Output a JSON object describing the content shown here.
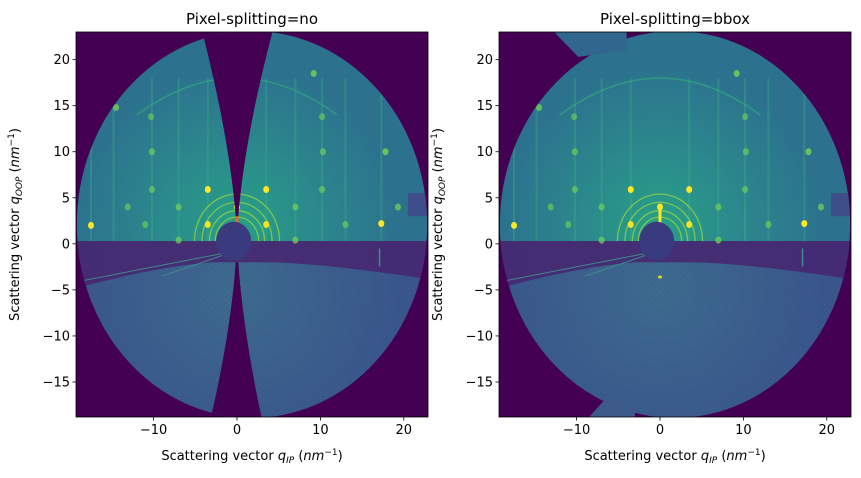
{
  "chart_data": [
    {
      "type": "heatmap",
      "title": "Pixel-splitting=no",
      "colormap": "viridis",
      "xlabel": {
        "prefix": "Scattering vector ",
        "symbol": "q",
        "subscript": "IP",
        "open": " (",
        "unit": "nm",
        "exponent": "−1",
        "close": ")"
      },
      "ylabel": {
        "prefix": "Scattering vector ",
        "symbol": "q",
        "subscript": "OOP",
        "open": " (",
        "unit": "nm",
        "exponent": "−1",
        "close": ")"
      },
      "xlim": [
        -19.3,
        22.9
      ],
      "ylim": [
        -18.8,
        23.0
      ],
      "xticks": [
        {
          "v": -10,
          "label": "−10"
        },
        {
          "v": 0,
          "label": "0"
        },
        {
          "v": 10,
          "label": "10"
        },
        {
          "v": 20,
          "label": "20"
        }
      ],
      "yticks": [
        {
          "v": -15,
          "label": "−15"
        },
        {
          "v": -10,
          "label": "−10"
        },
        {
          "v": -5,
          "label": "−5"
        },
        {
          "v": 0,
          "label": "0"
        },
        {
          "v": 5,
          "label": "5"
        },
        {
          "v": 10,
          "label": "10"
        },
        {
          "v": 15,
          "label": "15"
        },
        {
          "v": 20,
          "label": "20"
        }
      ],
      "missing_wedge": true
    },
    {
      "type": "heatmap",
      "title": "Pixel-splitting=bbox",
      "colormap": "viridis",
      "xlabel": {
        "prefix": "Scattering vector ",
        "symbol": "q",
        "subscript": "IP",
        "open": " (",
        "unit": "nm",
        "exponent": "−1",
        "close": ")"
      },
      "ylabel": {
        "prefix": "Scattering vector ",
        "symbol": "q",
        "subscript": "OOP",
        "open": " (",
        "unit": "nm",
        "exponent": "−1",
        "close": ")"
      },
      "xlim": [
        -19.3,
        22.9
      ],
      "ylim": [
        -18.8,
        23.0
      ],
      "xticks": [
        {
          "v": -10,
          "label": "−10"
        },
        {
          "v": 0,
          "label": "0"
        },
        {
          "v": 10,
          "label": "10"
        },
        {
          "v": 20,
          "label": "20"
        }
      ],
      "yticks": [
        {
          "v": -15,
          "label": "−15"
        },
        {
          "v": -10,
          "label": "−10"
        },
        {
          "v": -5,
          "label": "−5"
        },
        {
          "v": 0,
          "label": "0"
        },
        {
          "v": 5,
          "label": "5"
        },
        {
          "v": 10,
          "label": "10"
        },
        {
          "v": 15,
          "label": "15"
        },
        {
          "v": 20,
          "label": "20"
        }
      ],
      "missing_wedge": false
    }
  ],
  "colors": {
    "background": "#440154",
    "upper": "#2c728e",
    "upper_center": "#27a085",
    "lower": "#3b528b",
    "dark_band": "#46246f",
    "spot": "#fde725",
    "spot_mid": "#6ece58"
  },
  "spots": [
    {
      "x": -17.5,
      "y": 2.0,
      "i": 1.0
    },
    {
      "x": 17.3,
      "y": 2.2,
      "i": 1.0
    },
    {
      "x": -3.5,
      "y": 5.9,
      "i": 1.0
    },
    {
      "x": 3.5,
      "y": 5.9,
      "i": 1.0
    },
    {
      "x": -3.5,
      "y": 2.1,
      "i": 0.9
    },
    {
      "x": 3.5,
      "y": 2.1,
      "i": 0.9
    },
    {
      "x": 0.0,
      "y": 4.0,
      "i": 1.0
    },
    {
      "x": -7.0,
      "y": 4.0,
      "i": 0.6
    },
    {
      "x": 7.0,
      "y": 4.0,
      "i": 0.6
    },
    {
      "x": -10.2,
      "y": 5.9,
      "i": 0.5
    },
    {
      "x": 10.2,
      "y": 5.9,
      "i": 0.5
    },
    {
      "x": -10.2,
      "y": 10.0,
      "i": 0.55
    },
    {
      "x": 10.3,
      "y": 10.0,
      "i": 0.55
    },
    {
      "x": 17.8,
      "y": 10.0,
      "i": 0.8
    },
    {
      "x": -14.5,
      "y": 14.8,
      "i": 0.7
    },
    {
      "x": -10.3,
      "y": 13.8,
      "i": 0.4
    },
    {
      "x": 10.2,
      "y": 13.8,
      "i": 0.4
    },
    {
      "x": 9.2,
      "y": 18.5,
      "i": 0.8
    },
    {
      "x": 19.3,
      "y": 4.0,
      "i": 0.6
    },
    {
      "x": -13.1,
      "y": 4.0,
      "i": 0.45
    },
    {
      "x": 13.0,
      "y": 2.1,
      "i": 0.5
    },
    {
      "x": -11.0,
      "y": 2.1,
      "i": 0.45
    },
    {
      "x": 7.0,
      "y": 0.4,
      "i": 0.6
    },
    {
      "x": -7.0,
      "y": 0.4,
      "i": 0.6
    }
  ],
  "rings": [
    2.6,
    3.3,
    4.2,
    5.1
  ]
}
